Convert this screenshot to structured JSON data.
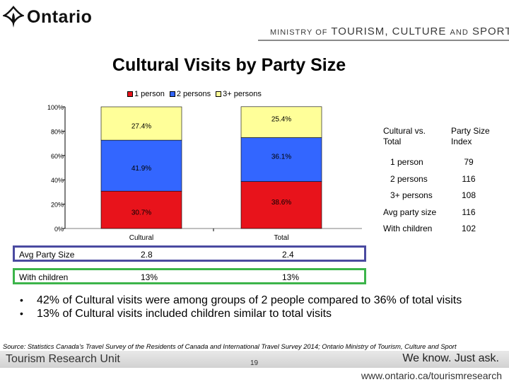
{
  "header": {
    "logo_text": "Ontario",
    "ministry_a": "MINISTRY OF",
    "ministry_b": "TOURISM",
    "ministry_c": ", CULTURE",
    "ministry_d": "AND",
    "ministry_e": "SPORT"
  },
  "title": "Cultural Visits by Party Size",
  "chart_data": {
    "type": "bar",
    "stacked": true,
    "categories": [
      "Cultural",
      "Total"
    ],
    "series": [
      {
        "name": "1 person",
        "values": [
          30.7,
          38.6
        ],
        "labels": [
          "30.7%",
          "38.6%"
        ],
        "color": "#e8131b"
      },
      {
        "name": "2 persons",
        "values": [
          41.9,
          36.1
        ],
        "labels": [
          "41.9%",
          "36.1%"
        ],
        "color": "#3366ff"
      },
      {
        "name": "3+ persons",
        "values": [
          27.4,
          25.4
        ],
        "labels": [
          "27.4%",
          "25.4%"
        ],
        "color": "#ffff99"
      }
    ],
    "yticks": [
      "0%",
      "20%",
      "40%",
      "60%",
      "80%",
      "100%"
    ],
    "ylim": [
      0,
      100
    ],
    "legend": "top"
  },
  "table": {
    "col1_header": "Cultural vs. Total",
    "col2_header": "Party Size Index",
    "rows": [
      {
        "label": "1 person",
        "value": "79"
      },
      {
        "label": "2 persons",
        "value": "116"
      },
      {
        "label": "3+ persons",
        "value": "108"
      },
      {
        "label": "Avg party size",
        "value": "116"
      },
      {
        "label": "With children",
        "value": "102"
      }
    ]
  },
  "stats": {
    "avg": {
      "label": "Avg Party Size",
      "v1": "2.8",
      "v2": "2.4"
    },
    "children": {
      "label": "With children",
      "v1": "13%",
      "v2": "13%"
    }
  },
  "bullets": [
    "42% of Cultural visits were among groups of 2 people compared to 36% of total visits",
    "13% of Cultural visits included children similar to total visits"
  ],
  "source": "Source: Statistics Canada’s Travel Survey of the Residents of Canada and International Travel Survey 2014; Ontario Ministry of Tourism, Culture and Sport",
  "footer": {
    "left": "Tourism Research Unit",
    "page": "19",
    "right": "We know. Just ask.",
    "url": "www.ontario.ca/tourismresearch"
  },
  "colors": {
    "avg_box_border": "#4a4aa0",
    "children_box_border": "#3cb44a",
    "bullet_text": "#000000"
  }
}
